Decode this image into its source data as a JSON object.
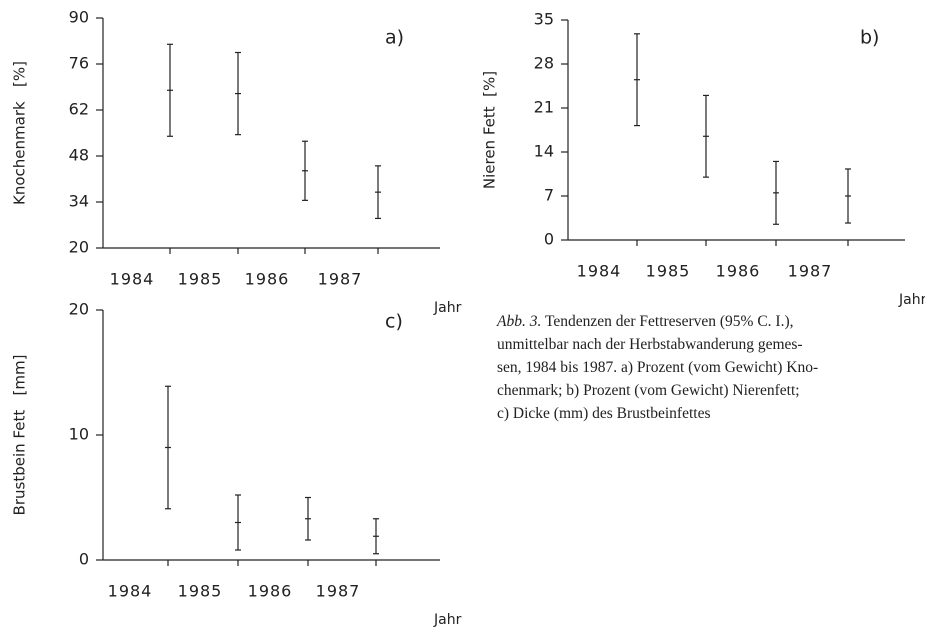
{
  "chart_data": [
    {
      "type": "errorbar",
      "panel": "a)",
      "ylabel": "Knochenmark   [%]",
      "xlabel": "Jahr",
      "categories": [
        "1984",
        "1985",
        "1986",
        "1987"
      ],
      "values": [
        68,
        67,
        43.5,
        37
      ],
      "errors": [
        14,
        12.5,
        9,
        8
      ],
      "ylim": [
        20,
        90
      ],
      "yticks": [
        20,
        34,
        48,
        62,
        76,
        90
      ],
      "color": "#222222"
    },
    {
      "type": "errorbar",
      "panel": "b)",
      "ylabel": "Nieren Fett  [%]",
      "xlabel": "Jahr",
      "categories": [
        "1984",
        "1985",
        "1986",
        "1987"
      ],
      "values": [
        25.5,
        16.5,
        7.5,
        7
      ],
      "errors": [
        7.3,
        6.5,
        5,
        4.3
      ],
      "ylim": [
        0,
        35
      ],
      "yticks": [
        0,
        7,
        14,
        21,
        28,
        35
      ],
      "color": "#222222"
    },
    {
      "type": "errorbar",
      "panel": "c)",
      "ylabel": "Brustbein Fett   [mm]",
      "xlabel": "Jahr",
      "categories": [
        "1984",
        "1985",
        "1986",
        "1987"
      ],
      "values": [
        9,
        3,
        3.3,
        1.9
      ],
      "errors": [
        4.9,
        2.2,
        1.7,
        1.4
      ],
      "ylim": [
        0,
        20
      ],
      "yticks": [
        0,
        10,
        20
      ],
      "color": "#222222"
    }
  ],
  "caption": {
    "label": "Abb. 3.",
    "lines": [
      "Tendenzen der Fettreserven (95% C. I.),",
      "unmittelbar nach der Herbstabwanderung gemes-",
      "sen, 1984 bis 1987. a) Prozent (vom Gewicht) Kno-",
      "chenmark; b) Prozent (vom Gewicht) Nierenfett;",
      "c) Dicke (mm) des Brustbeinfettes"
    ]
  }
}
